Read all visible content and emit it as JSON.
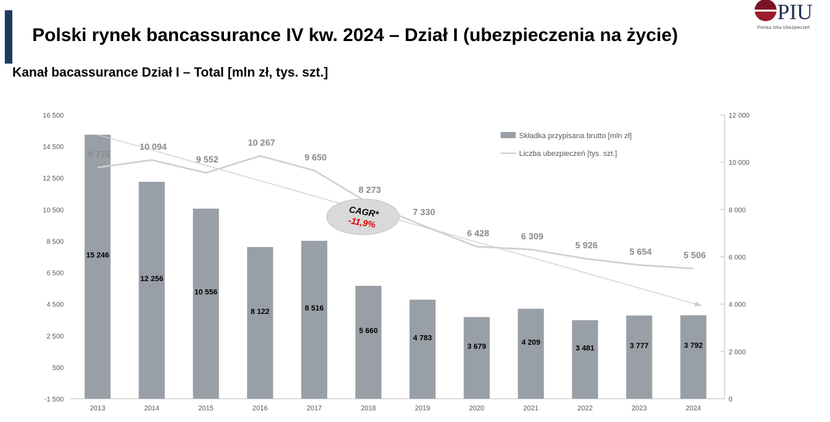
{
  "header": {
    "title": "Polski rynek bancassurance IV kw. 2024 – Dział I (ubezpieczenia na życie)",
    "subtitle": "Kanał bacassurance Dział I – Total [mln zł, tys. szt.]",
    "accent_color": "#1f3a5f"
  },
  "logo": {
    "text": "PIU",
    "caption": "Polska Izba Ubezpieczeń"
  },
  "chart_data": {
    "type": "bar",
    "categories": [
      "2013",
      "2014",
      "2015",
      "2016",
      "2017",
      "2018",
      "2019",
      "2020",
      "2021",
      "2022",
      "2023",
      "2024"
    ],
    "series": [
      {
        "name": "Składka przypisana brutto [mln zł]",
        "type": "bar",
        "axis": "left",
        "color": "#999fa6",
        "values": [
          15246,
          12256,
          10556,
          8122,
          8516,
          5660,
          4783,
          3679,
          4209,
          3481,
          3777,
          3792
        ],
        "labels": [
          "15 246",
          "12 256",
          "10 556",
          "8 122",
          "8 516",
          "5 660",
          "4 783",
          "3 679",
          "4 209",
          "3 481",
          "3 777",
          "3 792"
        ]
      },
      {
        "name": "Liczba ubezpieczeń [tys. szt.]",
        "type": "line",
        "axis": "right",
        "color": "#d0d0d0",
        "values": [
          9775,
          10094,
          9552,
          10267,
          9650,
          8273,
          7330,
          6428,
          6309,
          5926,
          5654,
          5506
        ],
        "labels": [
          "9 775",
          "10 094",
          "9 552",
          "10 267",
          "9 650",
          "8 273",
          "7 330",
          "6 428",
          "6 309",
          "5 926",
          "5 654",
          "5 506"
        ]
      }
    ],
    "left_axis": {
      "range": [
        -1500,
        16500
      ],
      "ticks": [
        -1500,
        500,
        2500,
        4500,
        6500,
        8500,
        10500,
        12500,
        14500,
        16500
      ],
      "tick_labels": [
        "-1 500",
        "500",
        "2 500",
        "4 500",
        "6 500",
        "8 500",
        "10 500",
        "12 500",
        "14 500",
        "16 500"
      ]
    },
    "right_axis": {
      "range": [
        0,
        12000
      ],
      "ticks": [
        0,
        2000,
        4000,
        6000,
        8000,
        10000,
        12000
      ],
      "tick_labels": [
        "0",
        "2 000",
        "4 000",
        "6 000",
        "8 000",
        "10 000",
        "12 000"
      ]
    },
    "annotation": {
      "title": "CAGR*",
      "value": "-11,9%",
      "trend_arrow": {
        "from_category": "2013",
        "to_category": "2024"
      }
    },
    "grid": false,
    "legend_position": "top-right"
  }
}
